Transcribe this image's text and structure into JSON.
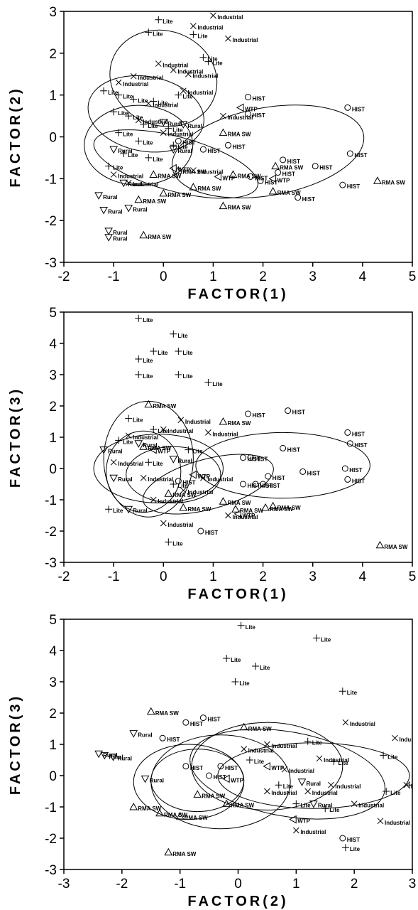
{
  "chart_data": [
    {
      "type": "scatter",
      "xlabel": "FACTOR(1)",
      "ylabel": "FACTOR(2)",
      "xlim": [
        -2,
        5
      ],
      "ylim": [
        -3,
        3
      ],
      "xticks": [
        "-2",
        "-1",
        "0",
        "1",
        "2",
        "3",
        "4",
        "5"
      ],
      "yticks": [
        "-3",
        "-2",
        "-1",
        "0",
        "1",
        "2",
        "3"
      ],
      "series": [
        {
          "name": "Lite",
          "marker": "plus",
          "points": [
            [
              -0.1,
              2.8
            ],
            [
              -0.3,
              2.5
            ],
            [
              0.6,
              2.45
            ],
            [
              0.8,
              1.9
            ],
            [
              0.9,
              1.8
            ],
            [
              -1.2,
              1.1
            ],
            [
              -0.9,
              1.0
            ],
            [
              -0.6,
              0.9
            ],
            [
              -0.2,
              0.85
            ],
            [
              0.3,
              1.0
            ],
            [
              -1.0,
              0.6
            ],
            [
              -0.7,
              0.5
            ],
            [
              -0.4,
              0.3
            ],
            [
              0.1,
              0.2
            ],
            [
              -0.9,
              0.1
            ],
            [
              -0.5,
              -0.1
            ],
            [
              0.2,
              -0.2
            ],
            [
              -0.8,
              -0.4
            ],
            [
              -0.3,
              -0.5
            ],
            [
              -1.1,
              -0.7
            ]
          ]
        },
        {
          "name": "Industrial",
          "marker": "x",
          "points": [
            [
              1.0,
              2.9
            ],
            [
              0.6,
              2.65
            ],
            [
              1.3,
              2.35
            ],
            [
              -0.1,
              1.75
            ],
            [
              0.2,
              1.6
            ],
            [
              0.5,
              1.5
            ],
            [
              -0.6,
              1.45
            ],
            [
              -0.9,
              1.3
            ],
            [
              0.4,
              1.1
            ],
            [
              -0.3,
              0.8
            ],
            [
              1.2,
              0.5
            ],
            [
              -0.5,
              0.4
            ],
            [
              0.0,
              0.1
            ],
            [
              -1.0,
              -0.9
            ],
            [
              -0.7,
              -1.1
            ],
            [
              0.6,
              -0.8
            ]
          ]
        },
        {
          "name": "HIST",
          "marker": "circle",
          "points": [
            [
              1.7,
              0.95
            ],
            [
              3.7,
              0.7
            ],
            [
              1.7,
              0.55
            ],
            [
              3.75,
              -0.4
            ],
            [
              2.4,
              -0.55
            ],
            [
              3.05,
              -0.7
            ],
            [
              2.3,
              -0.85
            ],
            [
              1.75,
              -0.95
            ],
            [
              1.95,
              -1.05
            ],
            [
              3.6,
              -1.15
            ],
            [
              2.7,
              -1.45
            ],
            [
              1.3,
              -0.2
            ],
            [
              0.8,
              -0.3
            ],
            [
              0.3,
              -0.1
            ]
          ]
        },
        {
          "name": "RMA SW",
          "marker": "triangle",
          "points": [
            [
              4.3,
              -1.05
            ],
            [
              2.25,
              -0.7
            ],
            [
              2.2,
              -1.3
            ],
            [
              1.2,
              0.1
            ],
            [
              1.4,
              -0.9
            ],
            [
              0.6,
              -1.2
            ],
            [
              0.0,
              -1.35
            ],
            [
              1.2,
              -1.65
            ],
            [
              -0.5,
              -1.5
            ],
            [
              -0.4,
              -2.35
            ],
            [
              0.3,
              -0.8
            ],
            [
              -0.2,
              -0.9
            ]
          ]
        },
        {
          "name": "Rural",
          "marker": "triangle-down",
          "points": [
            [
              -1.1,
              -2.25
            ],
            [
              -1.1,
              -2.4
            ],
            [
              -0.7,
              -1.7
            ],
            [
              -1.2,
              -1.75
            ],
            [
              -1.3,
              -1.4
            ],
            [
              -0.8,
              -1.1
            ],
            [
              0.0,
              0.35
            ],
            [
              0.2,
              -0.3
            ],
            [
              -1.0,
              -0.3
            ],
            [
              0.4,
              0.3
            ]
          ]
        },
        {
          "name": "WTP",
          "marker": "triangle-left",
          "points": [
            [
              1.55,
              0.7
            ],
            [
              2.2,
              -1.0
            ],
            [
              1.1,
              -0.95
            ],
            [
              0.2,
              -0.75
            ]
          ]
        }
      ],
      "ellipses": [
        {
          "cx": 0.0,
          "cy": 1.4,
          "rx": 0.95,
          "ry": 1.3,
          "rotation": -70
        },
        {
          "cx": -0.35,
          "cy": 0.55,
          "rx": 0.75,
          "ry": 1.4,
          "rotation": -80
        },
        {
          "cx": -0.5,
          "cy": -0.2,
          "rx": 0.8,
          "ry": 1.3,
          "rotation": -90
        },
        {
          "cx": 0.25,
          "cy": -0.65,
          "rx": 1.7,
          "ry": 0.65,
          "rotation": 15
        },
        {
          "cx": 2.1,
          "cy": -0.35,
          "rx": 1.95,
          "ry": 1.05,
          "rotation": -10
        }
      ]
    },
    {
      "type": "scatter",
      "xlabel": "FACTOR(1)",
      "ylabel": "FACTOR(3)",
      "xlim": [
        -2,
        5
      ],
      "ylim": [
        -3,
        5
      ],
      "xticks": [
        "-2",
        "-1",
        "0",
        "1",
        "2",
        "3",
        "4",
        "5"
      ],
      "yticks": [
        "-3",
        "-2",
        "-1",
        "0",
        "1",
        "2",
        "3",
        "4",
        "5"
      ],
      "series": [
        {
          "name": "Lite",
          "marker": "plus",
          "points": [
            [
              -0.5,
              4.8
            ],
            [
              0.2,
              4.3
            ],
            [
              -0.2,
              3.75
            ],
            [
              0.3,
              3.75
            ],
            [
              -0.5,
              3.5
            ],
            [
              -0.5,
              3.0
            ],
            [
              0.3,
              3.0
            ],
            [
              0.9,
              2.75
            ],
            [
              -0.7,
              1.6
            ],
            [
              -0.2,
              1.25
            ],
            [
              -1.1,
              -1.3
            ],
            [
              0.1,
              -2.35
            ],
            [
              -0.9,
              0.9
            ],
            [
              0.5,
              0.6
            ],
            [
              -0.3,
              0.2
            ],
            [
              0.2,
              -0.5
            ]
          ]
        },
        {
          "name": "Industrial",
          "marker": "x",
          "points": [
            [
              0.35,
              1.55
            ],
            [
              0.0,
              1.25
            ],
            [
              -0.7,
              1.05
            ],
            [
              0.9,
              1.15
            ],
            [
              0.0,
              -1.75
            ],
            [
              -1.0,
              0.2
            ],
            [
              -0.4,
              -0.3
            ],
            [
              0.4,
              -0.7
            ],
            [
              -0.2,
              -1.0
            ],
            [
              1.3,
              -1.5
            ],
            [
              0.8,
              -0.3
            ]
          ]
        },
        {
          "name": "HIST",
          "marker": "circle",
          "points": [
            [
              1.7,
              1.75
            ],
            [
              2.5,
              1.85
            ],
            [
              3.7,
              1.15
            ],
            [
              3.75,
              0.8
            ],
            [
              2.4,
              0.65
            ],
            [
              1.6,
              0.35
            ],
            [
              1.75,
              0.35
            ],
            [
              2.8,
              -0.1
            ],
            [
              2.1,
              -0.25
            ],
            [
              3.65,
              0.0
            ],
            [
              3.7,
              -0.35
            ],
            [
              1.6,
              -0.5
            ],
            [
              1.85,
              -0.5
            ],
            [
              2.0,
              -0.5
            ],
            [
              0.75,
              -2.0
            ],
            [
              0.3,
              -0.4
            ]
          ]
        },
        {
          "name": "RMA SW",
          "marker": "triangle",
          "points": [
            [
              -0.3,
              2.05
            ],
            [
              1.2,
              1.5
            ],
            [
              4.35,
              -2.45
            ],
            [
              2.2,
              -1.2
            ],
            [
              2.05,
              -1.25
            ],
            [
              1.45,
              -1.3
            ],
            [
              1.2,
              -1.05
            ],
            [
              0.4,
              -1.25
            ],
            [
              -0.4,
              0.7
            ],
            [
              0.1,
              -0.8
            ]
          ]
        },
        {
          "name": "Rural",
          "marker": "triangle-down",
          "points": [
            [
              -0.5,
              0.8
            ],
            [
              -0.7,
              -1.3
            ],
            [
              -1.2,
              0.6
            ],
            [
              -1.0,
              -0.3
            ],
            [
              0.2,
              0.3
            ]
          ]
        },
        {
          "name": "WTP",
          "marker": "triangle-left",
          "points": [
            [
              1.5,
              -1.45
            ],
            [
              -0.2,
              0.6
            ],
            [
              0.6,
              -0.2
            ]
          ]
        }
      ],
      "ellipses": [
        {
          "cx": -0.3,
          "cy": 0.3,
          "rx": 0.9,
          "ry": 1.85,
          "rotation": 0
        },
        {
          "cx": -0.4,
          "cy": -0.1,
          "rx": 0.75,
          "ry": 1.3,
          "rotation": 0
        },
        {
          "cx": -0.1,
          "cy": 0.0,
          "rx": 1.3,
          "ry": 1.1,
          "rotation": 0
        },
        {
          "cx": 0.2,
          "cy": -0.2,
          "rx": 0.95,
          "ry": 0.9,
          "rotation": 0
        },
        {
          "cx": 0.9,
          "cy": -0.5,
          "rx": 1.35,
          "ry": 0.8,
          "rotation": -15
        },
        {
          "cx": 2.4,
          "cy": 0.1,
          "rx": 1.75,
          "ry": 1.05,
          "rotation": 0
        }
      ]
    },
    {
      "type": "scatter",
      "xlabel": "FACTOR(2)",
      "ylabel": "FACTOR(3)",
      "xlim": [
        -3,
        3
      ],
      "ylim": [
        -3,
        5
      ],
      "xticks": [
        "-3",
        "-2",
        "-1",
        "0",
        "1",
        "2",
        "3"
      ],
      "yticks": [
        "-3",
        "-2",
        "-1",
        "0",
        "1",
        "2",
        "3",
        "4",
        "5"
      ],
      "series": [
        {
          "name": "Lite",
          "marker": "plus",
          "points": [
            [
              0.05,
              4.8
            ],
            [
              1.35,
              4.4
            ],
            [
              -0.2,
              3.75
            ],
            [
              0.3,
              3.5
            ],
            [
              -0.05,
              3.0
            ],
            [
              1.8,
              2.7
            ],
            [
              1.2,
              1.1
            ],
            [
              1.65,
              0.45
            ],
            [
              2.5,
              0.65
            ],
            [
              2.95,
              -0.3
            ],
            [
              2.55,
              -0.5
            ],
            [
              1.0,
              -0.9
            ],
            [
              1.5,
              -1.05
            ],
            [
              1.85,
              -2.3
            ],
            [
              0.2,
              0.5
            ],
            [
              0.7,
              -0.3
            ]
          ]
        },
        {
          "name": "Industrial",
          "marker": "x",
          "points": [
            [
              1.85,
              1.7
            ],
            [
              2.7,
              1.2
            ],
            [
              2.45,
              -1.45
            ],
            [
              1.0,
              -1.75
            ],
            [
              1.4,
              0.55
            ],
            [
              0.1,
              0.85
            ],
            [
              0.5,
              1.0
            ],
            [
              0.8,
              0.2
            ],
            [
              1.2,
              -0.5
            ],
            [
              1.6,
              -0.3
            ],
            [
              2.0,
              -0.9
            ],
            [
              0.5,
              -0.5
            ],
            [
              2.9,
              -0.3
            ]
          ]
        },
        {
          "name": "HIST",
          "marker": "circle",
          "points": [
            [
              -1.3,
              1.2
            ],
            [
              -0.9,
              1.7
            ],
            [
              -0.6,
              1.85
            ],
            [
              1.8,
              -2.0
            ],
            [
              -0.9,
              0.3
            ],
            [
              -0.3,
              0.3
            ],
            [
              -0.5,
              0.0
            ]
          ]
        },
        {
          "name": "RMA SW",
          "marker": "triangle",
          "points": [
            [
              -1.5,
              2.05
            ],
            [
              0.1,
              1.55
            ],
            [
              -1.2,
              -2.45
            ],
            [
              -1.8,
              -1.0
            ],
            [
              -1.35,
              -1.2
            ],
            [
              -1.0,
              -1.3
            ],
            [
              -0.7,
              -0.6
            ],
            [
              -0.2,
              -0.9
            ]
          ]
        },
        {
          "name": "Rural",
          "marker": "triangle-down",
          "points": [
            [
              -2.4,
              0.7
            ],
            [
              -2.3,
              0.65
            ],
            [
              -2.15,
              0.6
            ],
            [
              -1.8,
              1.35
            ],
            [
              1.3,
              -0.9
            ],
            [
              1.1,
              -0.2
            ],
            [
              -1.6,
              -0.1
            ]
          ]
        },
        {
          "name": "WTP",
          "marker": "triangle-left",
          "points": [
            [
              0.95,
              -1.4
            ],
            [
              0.5,
              0.3
            ],
            [
              -0.2,
              -0.1
            ]
          ]
        }
      ],
      "ellipses": [
        {
          "cx": -0.85,
          "cy": -0.2,
          "rx": 0.95,
          "ry": 1.2,
          "rotation": 0
        },
        {
          "cx": -0.7,
          "cy": -0.15,
          "rx": 0.8,
          "ry": 1.0,
          "rotation": 0
        },
        {
          "cx": -0.3,
          "cy": -0.2,
          "rx": 1.2,
          "ry": 1.5,
          "rotation": 0
        },
        {
          "cx": 0.85,
          "cy": 0.05,
          "rx": 1.7,
          "ry": 1.35,
          "rotation": 10
        },
        {
          "cx": 1.3,
          "cy": 0.0,
          "rx": 1.65,
          "ry": 1.05,
          "rotation": 0
        },
        {
          "cx": 0.5,
          "cy": 0.3,
          "rx": 1.3,
          "ry": 1.4,
          "rotation": 0
        }
      ]
    }
  ]
}
